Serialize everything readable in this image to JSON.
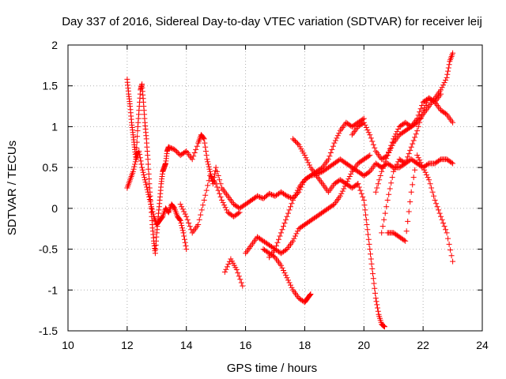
{
  "chart_data": {
    "type": "scatter",
    "title": "Day 337 of 2016, Sidereal Day-to-day VTEC variation (SDTVAR) for receiver leij",
    "xlabel": "GPS time / hours",
    "ylabel": "SDTVAR / TECUs",
    "xlim": [
      10,
      24
    ],
    "ylim": [
      -1.5,
      2
    ],
    "xticks": [
      "10",
      "12",
      "14",
      "16",
      "18",
      "20",
      "22",
      "24"
    ],
    "yticks": [
      "-1.5",
      "-1",
      "-0.5",
      "0",
      "0.5",
      "1",
      "1.5",
      "2"
    ],
    "grid": true,
    "marker": "+",
    "color": "#ff0000",
    "series": [
      {
        "x": [
          12.0,
          12.05,
          12.1,
          12.15,
          12.2,
          12.25,
          12.3,
          12.35,
          12.4,
          12.45,
          12.5,
          12.55,
          12.6,
          12.65,
          12.7,
          12.75,
          12.8,
          12.85,
          12.9,
          12.95,
          13.0,
          13.05,
          13.1,
          13.15,
          13.2,
          13.25,
          13.3,
          13.35,
          13.4
        ],
        "y": [
          1.58,
          1.4,
          1.25,
          1.05,
          0.9,
          0.75,
          0.6,
          0.95,
          1.2,
          1.45,
          1.52,
          1.3,
          1.05,
          0.85,
          0.6,
          0.3,
          0.05,
          -0.2,
          -0.4,
          -0.55,
          -0.3,
          -0.1,
          0.1,
          0.3,
          0.45,
          0.5,
          0.55,
          0.7,
          0.75
        ]
      },
      {
        "x": [
          12.0,
          12.1,
          12.2,
          12.3,
          12.4,
          12.5,
          12.6,
          12.7,
          12.8,
          12.9,
          13.0,
          13.1,
          13.2,
          13.3,
          13.4,
          13.5,
          13.6,
          13.7,
          13.8,
          13.9,
          14.0
        ],
        "y": [
          0.25,
          0.35,
          0.45,
          0.6,
          0.7,
          0.5,
          0.35,
          0.2,
          0.05,
          -0.1,
          -0.2,
          -0.15,
          -0.1,
          0.0,
          -0.05,
          0.05,
          0.0,
          -0.1,
          -0.15,
          -0.3,
          -0.5
        ]
      },
      {
        "x": [
          13.4,
          13.6,
          13.8,
          14.0,
          14.2,
          14.4,
          14.5,
          14.6,
          14.7,
          14.8,
          14.9,
          15.0,
          15.2,
          15.4,
          15.6,
          15.8,
          16.0,
          16.2,
          16.4,
          16.6,
          16.8,
          17.0,
          17.2,
          17.4,
          17.6,
          17.8,
          18.0,
          18.2,
          18.4,
          18.6,
          18.8,
          19.0,
          19.2,
          19.4,
          19.6,
          19.8,
          20.0,
          20.2,
          20.4,
          20.6,
          20.8,
          21.0,
          21.2,
          21.4,
          21.6,
          21.8,
          22.0,
          22.2,
          22.4,
          22.6,
          22.8,
          23.0
        ],
        "y": [
          0.75,
          0.72,
          0.65,
          0.7,
          0.6,
          0.8,
          0.9,
          0.85,
          0.6,
          0.45,
          0.3,
          0.5,
          0.25,
          0.15,
          0.05,
          0.0,
          0.05,
          0.1,
          0.15,
          0.12,
          0.18,
          0.15,
          0.2,
          0.15,
          0.12,
          0.2,
          0.35,
          0.4,
          0.42,
          0.45,
          0.5,
          0.55,
          0.6,
          0.55,
          0.5,
          0.45,
          0.4,
          0.45,
          0.55,
          0.5,
          0.55,
          0.5,
          0.5,
          0.55,
          0.6,
          0.55,
          0.5,
          0.55,
          0.55,
          0.6,
          0.6,
          0.55
        ]
      },
      {
        "x": [
          13.8,
          14.0,
          14.2,
          14.4,
          14.6,
          14.8,
          15.0,
          15.2,
          15.4,
          15.6,
          15.8
        ],
        "y": [
          0.05,
          -0.1,
          -0.3,
          -0.2,
          0.1,
          0.4,
          0.3,
          0.1,
          -0.05,
          -0.1,
          -0.05
        ]
      },
      {
        "x": [
          15.3,
          15.5,
          15.7,
          15.9
        ],
        "y": [
          -0.78,
          -0.62,
          -0.75,
          -0.95
        ]
      },
      {
        "x": [
          16.0,
          16.2,
          16.4,
          16.6,
          16.8,
          17.0,
          17.2,
          17.4,
          17.6,
          17.8,
          18.0,
          18.2,
          18.4,
          18.6,
          18.8,
          19.0,
          19.2,
          19.4,
          19.6,
          19.8,
          20.0,
          20.2
        ],
        "y": [
          -0.55,
          -0.45,
          -0.35,
          -0.4,
          -0.45,
          -0.5,
          -0.55,
          -0.5,
          -0.4,
          -0.25,
          -0.2,
          -0.15,
          -0.1,
          -0.05,
          0.0,
          0.05,
          0.15,
          0.3,
          0.45,
          0.55,
          0.6,
          0.65
        ]
      },
      {
        "x": [
          16.6,
          16.8,
          17.0,
          17.2,
          17.4,
          17.6,
          17.8,
          18.0,
          18.1,
          18.2
        ],
        "y": [
          -0.5,
          -0.55,
          -0.6,
          -0.7,
          -0.85,
          -1.0,
          -1.1,
          -1.15,
          -1.1,
          -1.05
        ]
      },
      {
        "x": [
          16.8,
          17.0,
          17.2,
          17.4,
          17.6,
          17.8,
          18.0,
          18.2,
          18.4,
          18.6,
          18.8,
          19.0,
          19.2,
          19.4,
          19.6,
          19.8,
          20.0
        ],
        "y": [
          -0.6,
          -0.5,
          -0.3,
          -0.1,
          0.1,
          0.25,
          0.35,
          0.4,
          0.45,
          0.5,
          0.6,
          0.8,
          0.95,
          1.05,
          1.0,
          1.05,
          1.1
        ]
      },
      {
        "x": [
          17.6,
          17.8,
          18.0,
          18.2,
          18.4,
          18.6,
          18.8,
          19.0,
          19.2,
          19.4,
          19.6,
          19.8
        ],
        "y": [
          0.85,
          0.78,
          0.65,
          0.5,
          0.4,
          0.3,
          0.2,
          0.3,
          0.35,
          0.3,
          0.25,
          0.3
        ]
      },
      {
        "x": [
          19.8,
          20.0,
          20.1,
          20.2,
          20.3,
          20.4,
          20.5,
          20.6,
          20.7
        ],
        "y": [
          0.3,
          0.1,
          -0.2,
          -0.5,
          -0.8,
          -1.1,
          -1.3,
          -1.42,
          -1.45
        ]
      },
      {
        "x": [
          19.6,
          19.8,
          20.0,
          20.2,
          20.4,
          20.6,
          20.8,
          21.0,
          21.2,
          21.4,
          21.6,
          21.8,
          22.0,
          22.2,
          22.4,
          22.6
        ],
        "y": [
          0.9,
          1.0,
          1.05,
          0.9,
          0.7,
          0.6,
          0.65,
          0.8,
          0.9,
          0.95,
          1.0,
          1.1,
          1.3,
          1.35,
          1.3,
          1.4
        ]
      },
      {
        "x": [
          20.4,
          20.6,
          20.8,
          21.0,
          21.2,
          21.4,
          21.6,
          21.8,
          22.0,
          22.2,
          22.4,
          22.6,
          22.8,
          22.9,
          23.0
        ],
        "y": [
          0.2,
          0.45,
          0.65,
          0.85,
          1.0,
          1.05,
          1.0,
          1.05,
          1.15,
          1.25,
          1.35,
          1.45,
          1.6,
          1.8,
          1.9
        ]
      },
      {
        "x": [
          20.6,
          20.8,
          21.0,
          21.2,
          21.4,
          21.6,
          21.8,
          22.0,
          22.2,
          22.4,
          22.6,
          22.8,
          23.0
        ],
        "y": [
          -0.3,
          0.1,
          0.45,
          0.6,
          0.55,
          0.75,
          0.95,
          1.2,
          1.35,
          1.3,
          1.2,
          1.15,
          1.05
        ]
      },
      {
        "x": [
          20.8,
          21.0,
          21.2,
          21.4,
          21.6,
          21.8,
          22.0,
          22.2,
          22.4,
          22.6,
          22.8,
          23.0
        ],
        "y": [
          -0.3,
          -0.3,
          -0.35,
          -0.4,
          0.2,
          0.65,
          0.5,
          0.35,
          0.1,
          -0.1,
          -0.3,
          -0.65
        ]
      }
    ]
  }
}
